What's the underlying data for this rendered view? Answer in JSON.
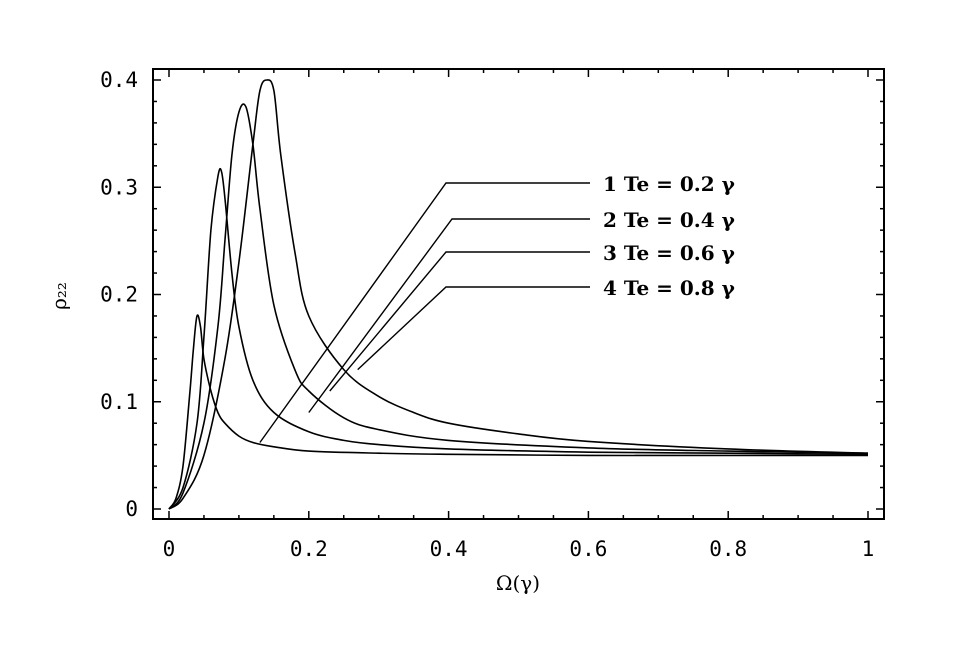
{
  "chart_data": {
    "type": "line",
    "xlabel": "Ω(γ)",
    "ylabel": "ρ₂₂",
    "xlim": [
      0,
      1
    ],
    "ylim": [
      0,
      0.4
    ],
    "x_ticks": [
      0,
      0.2,
      0.4,
      0.6,
      0.8,
      1
    ],
    "x_tick_labels": [
      "0",
      "0.2",
      "0.4",
      "0.6",
      "0.8",
      "1"
    ],
    "y_ticks": [
      0,
      0.1,
      0.2,
      0.3,
      0.4
    ],
    "y_tick_labels": [
      "0",
      "0.1",
      "0.2",
      "0.3",
      "0.4"
    ],
    "grid": false,
    "legend_placement": "top-right",
    "series": [
      {
        "name": "1  Te = 0.2 γ",
        "x": [
          0,
          0.01,
          0.02,
          0.03,
          0.035,
          0.04,
          0.045,
          0.05,
          0.06,
          0.07,
          0.08,
          0.1,
          0.12,
          0.15,
          0.2,
          0.3,
          0.4,
          0.6,
          0.8,
          1.0
        ],
        "y": [
          0,
          0.01,
          0.04,
          0.11,
          0.15,
          0.18,
          0.17,
          0.14,
          0.11,
          0.09,
          0.08,
          0.068,
          0.062,
          0.058,
          0.054,
          0.052,
          0.051,
          0.05,
          0.05,
          0.05
        ]
      },
      {
        "name": "2  Te = 0.4 γ",
        "x": [
          0,
          0.02,
          0.04,
          0.05,
          0.06,
          0.07,
          0.075,
          0.08,
          0.09,
          0.1,
          0.12,
          0.15,
          0.2,
          0.25,
          0.3,
          0.4,
          0.6,
          0.8,
          1.0
        ],
        "y": [
          0,
          0.02,
          0.08,
          0.16,
          0.26,
          0.31,
          0.315,
          0.29,
          0.22,
          0.17,
          0.12,
          0.09,
          0.072,
          0.064,
          0.06,
          0.056,
          0.053,
          0.052,
          0.051
        ]
      },
      {
        "name": "3  Te = 0.6 γ",
        "x": [
          0,
          0.02,
          0.05,
          0.07,
          0.08,
          0.09,
          0.1,
          0.11,
          0.12,
          0.13,
          0.15,
          0.18,
          0.2,
          0.25,
          0.3,
          0.4,
          0.6,
          0.8,
          1.0
        ],
        "y": [
          0,
          0.015,
          0.08,
          0.17,
          0.25,
          0.33,
          0.37,
          0.375,
          0.34,
          0.28,
          0.19,
          0.13,
          0.11,
          0.085,
          0.074,
          0.064,
          0.057,
          0.054,
          0.052
        ]
      },
      {
        "name": "4  Te = 0.8 γ",
        "x": [
          0,
          0.02,
          0.05,
          0.08,
          0.1,
          0.12,
          0.13,
          0.14,
          0.15,
          0.16,
          0.18,
          0.2,
          0.25,
          0.3,
          0.35,
          0.4,
          0.5,
          0.6,
          0.8,
          1.0
        ],
        "y": [
          0,
          0.01,
          0.05,
          0.14,
          0.23,
          0.34,
          0.39,
          0.4,
          0.39,
          0.33,
          0.24,
          0.18,
          0.13,
          0.105,
          0.09,
          0.08,
          0.07,
          0.063,
          0.056,
          0.052
        ]
      }
    ]
  }
}
